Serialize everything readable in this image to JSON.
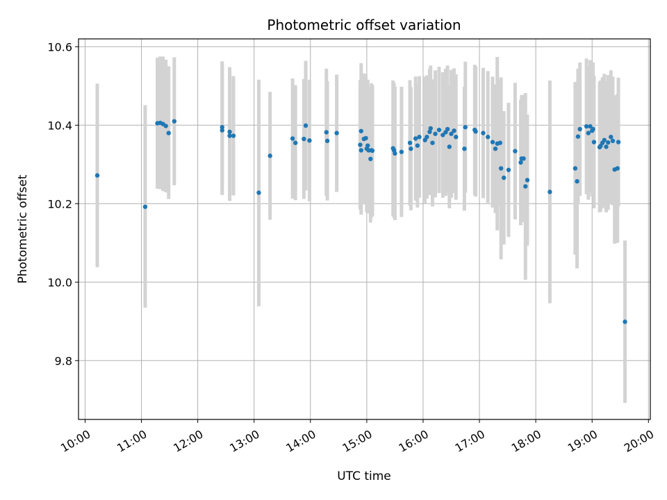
{
  "chart_data": {
    "type": "scatter",
    "title": "Photometric offset variation",
    "xlabel": "UTC time",
    "ylabel": "Photometric offset",
    "x_unit": "UTC time (HH:MM)",
    "xlim": [
      "09:53",
      "20:02"
    ],
    "ylim": [
      9.65,
      10.62
    ],
    "x_ticks": [
      "10:00",
      "11:00",
      "12:00",
      "13:00",
      "14:00",
      "15:00",
      "16:00",
      "17:00",
      "18:00",
      "19:00",
      "20:00"
    ],
    "y_ticks": [
      "9.8",
      "10.0",
      "10.2",
      "10.4",
      "10.6"
    ],
    "grid": true,
    "colors": {
      "points": "#1f77b4",
      "errorbars": "#d3d3d3",
      "grid": "#b0b0b0",
      "axes": "#000000"
    },
    "series": [
      {
        "x": [
          "10:13",
          "11:04",
          "11:17",
          "11:20",
          "11:23",
          "11:26",
          "11:29",
          "11:35",
          "12:26",
          "12:26",
          "12:34",
          "12:34",
          "12:38",
          "13:05",
          "13:17",
          "13:41",
          "13:44",
          "13:53",
          "13:55",
          "13:59",
          "14:17",
          "14:18",
          "14:28",
          "14:53",
          "14:54",
          "14:54",
          "14:57",
          "14:59",
          "15:00",
          "15:01",
          "15:02",
          "15:04",
          "15:05",
          "15:06",
          "15:28",
          "15:29",
          "15:30",
          "15:37",
          "15:46",
          "15:47",
          "15:52",
          "15:54",
          "15:56",
          "16:02",
          "16:04",
          "16:07",
          "16:08",
          "16:10",
          "16:13",
          "16:17",
          "16:21",
          "16:24",
          "16:26",
          "16:28",
          "16:30",
          "16:33",
          "16:35",
          "16:44",
          "16:45",
          "16:55",
          "16:56",
          "17:04",
          "17:09",
          "17:14",
          "17:17",
          "17:19",
          "17:22",
          "17:23",
          "17:26",
          "17:31",
          "17:38",
          "17:44",
          "17:45",
          "17:47",
          "17:49",
          "17:51",
          "18:15",
          "18:42",
          "18:44",
          "18:45",
          "18:47",
          "18:54",
          "18:56",
          "18:58",
          "19:00",
          "19:01",
          "19:02",
          "19:08",
          "19:09",
          "19:11",
          "19:13",
          "19:15",
          "19:17",
          "19:20",
          "19:22",
          "19:24",
          "19:27",
          "19:28",
          "19:35"
        ],
        "y": [
          10.272,
          10.192,
          10.405,
          10.406,
          10.403,
          10.398,
          10.38,
          10.41,
          10.387,
          10.395,
          10.373,
          10.383,
          10.373,
          10.228,
          10.322,
          10.366,
          10.355,
          10.365,
          10.399,
          10.361,
          10.382,
          10.36,
          10.38,
          10.35,
          10.336,
          10.385,
          10.365,
          10.367,
          10.34,
          10.348,
          10.336,
          10.314,
          10.336,
          10.335,
          10.341,
          10.336,
          10.328,
          10.332,
          10.355,
          10.34,
          10.366,
          10.348,
          10.37,
          10.362,
          10.37,
          10.383,
          10.392,
          10.355,
          10.378,
          10.388,
          10.375,
          10.382,
          10.39,
          10.345,
          10.378,
          10.386,
          10.37,
          10.34,
          10.395,
          10.388,
          10.384,
          10.38,
          10.37,
          10.357,
          10.34,
          10.353,
          10.355,
          10.29,
          10.266,
          10.286,
          10.334,
          10.305,
          10.315,
          10.315,
          10.244,
          10.26,
          10.23,
          10.29,
          10.257,
          10.371,
          10.39,
          10.397,
          10.38,
          10.397,
          10.386,
          10.39,
          10.357,
          10.344,
          10.347,
          10.355,
          10.362,
          10.345,
          10.356,
          10.37,
          10.36,
          10.287,
          10.29,
          10.357,
          9.899
        ],
        "err_low": [
          10.038,
          9.935,
          10.238,
          10.237,
          10.232,
          10.229,
          10.212,
          10.247,
          10.222,
          10.234,
          10.207,
          10.22,
          10.221,
          9.938,
          10.159,
          10.213,
          10.209,
          10.212,
          10.234,
          10.206,
          10.22,
          10.208,
          10.23,
          10.185,
          10.172,
          10.212,
          10.198,
          10.203,
          10.178,
          10.18,
          10.175,
          10.152,
          10.165,
          10.168,
          10.168,
          10.164,
          10.158,
          10.166,
          10.195,
          10.183,
          10.208,
          10.19,
          10.215,
          10.2,
          10.213,
          10.222,
          10.232,
          10.193,
          10.216,
          10.227,
          10.215,
          10.22,
          10.228,
          10.188,
          10.215,
          10.227,
          10.21,
          10.182,
          10.228,
          10.222,
          10.218,
          10.214,
          10.202,
          10.19,
          10.176,
          10.132,
          10.193,
          10.058,
          10.096,
          10.115,
          10.16,
          10.145,
          10.153,
          10.153,
          10.006,
          10.093,
          9.946,
          10.07,
          10.035,
          10.198,
          10.22,
          10.224,
          10.21,
          10.228,
          10.218,
          10.22,
          10.188,
          10.178,
          10.18,
          10.188,
          10.193,
          10.178,
          10.184,
          10.2,
          10.196,
          10.098,
          10.1,
          10.193,
          9.692
        ],
        "err_high": [
          10.506,
          10.451,
          10.572,
          10.575,
          10.575,
          10.567,
          10.55,
          10.573,
          10.563,
          10.556,
          10.539,
          10.548,
          10.525,
          10.516,
          10.485,
          10.519,
          10.502,
          10.518,
          10.564,
          10.516,
          10.544,
          10.512,
          10.529,
          10.515,
          10.5,
          10.558,
          10.532,
          10.531,
          10.502,
          10.516,
          10.497,
          10.476,
          10.507,
          10.502,
          10.514,
          10.508,
          10.498,
          10.498,
          10.515,
          10.497,
          10.524,
          10.506,
          10.525,
          10.524,
          10.527,
          10.544,
          10.552,
          10.517,
          10.54,
          10.549,
          10.535,
          10.544,
          10.552,
          10.502,
          10.541,
          10.545,
          10.53,
          10.498,
          10.562,
          10.554,
          10.55,
          10.546,
          10.538,
          10.524,
          10.504,
          10.574,
          10.517,
          10.522,
          10.436,
          10.457,
          10.508,
          10.465,
          10.477,
          10.477,
          10.482,
          10.427,
          10.514,
          10.51,
          10.479,
          10.544,
          10.56,
          10.57,
          10.55,
          10.566,
          10.554,
          10.56,
          10.526,
          10.51,
          10.514,
          10.522,
          10.531,
          10.512,
          10.528,
          10.54,
          10.524,
          10.476,
          10.48,
          10.521,
          10.106
        ]
      }
    ]
  }
}
